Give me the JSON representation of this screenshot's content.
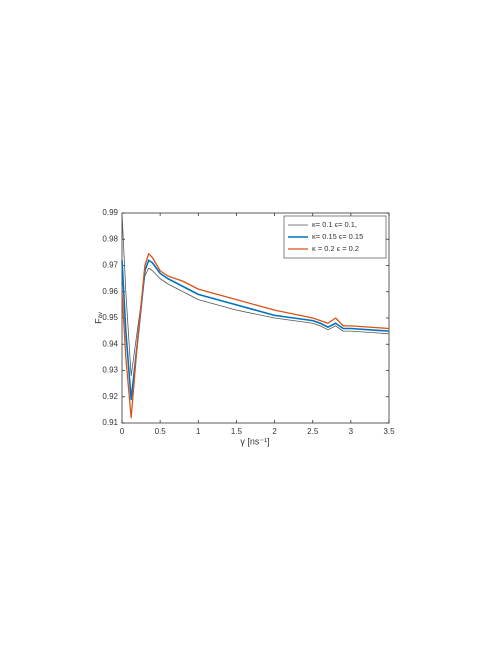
{
  "chart_data": {
    "type": "line",
    "xlabel": "γ [ns⁻¹]",
    "ylabel": "Fₐᵥ",
    "x": [
      0,
      0.05,
      0.12,
      0.2,
      0.3,
      0.35,
      0.4,
      0.5,
      0.6,
      0.8,
      1.0,
      1.5,
      2.0,
      2.5,
      2.6,
      2.7,
      2.8,
      2.9,
      3.0,
      3.5
    ],
    "series": [
      {
        "name": "κ= 0.1 ϵ= 0.1,",
        "color": "#555555",
        "values": [
          0.99,
          0.96,
          0.928,
          0.945,
          0.966,
          0.969,
          0.968,
          0.965,
          0.963,
          0.96,
          0.957,
          0.953,
          0.95,
          0.948,
          0.947,
          0.9455,
          0.947,
          0.945,
          0.945,
          0.944
        ]
      },
      {
        "name": "κ= 0.15 ϵ= 0.15",
        "color": "#0072bd",
        "values": [
          0.972,
          0.945,
          0.919,
          0.94,
          0.968,
          0.972,
          0.971,
          0.967,
          0.965,
          0.962,
          0.959,
          0.955,
          0.951,
          0.949,
          0.948,
          0.9465,
          0.948,
          0.946,
          0.946,
          0.945
        ]
      },
      {
        "name": "κ = 0.2 ϵ = 0.2",
        "color": "#d95319",
        "values": [
          0.96,
          0.935,
          0.912,
          0.94,
          0.97,
          0.9745,
          0.973,
          0.968,
          0.966,
          0.964,
          0.961,
          0.957,
          0.953,
          0.95,
          0.949,
          0.948,
          0.95,
          0.947,
          0.947,
          0.946
        ]
      }
    ],
    "xlim": [
      0,
      3.5
    ],
    "xticks": [
      0,
      0.5,
      1,
      1.5,
      2,
      2.5,
      3,
      3.5
    ],
    "ylim": [
      0.91,
      0.99
    ],
    "yticks": [
      0.91,
      0.92,
      0.93,
      0.94,
      0.95,
      0.96,
      0.97,
      0.98,
      0.99
    ],
    "legend": "top-right",
    "grid": false
  }
}
